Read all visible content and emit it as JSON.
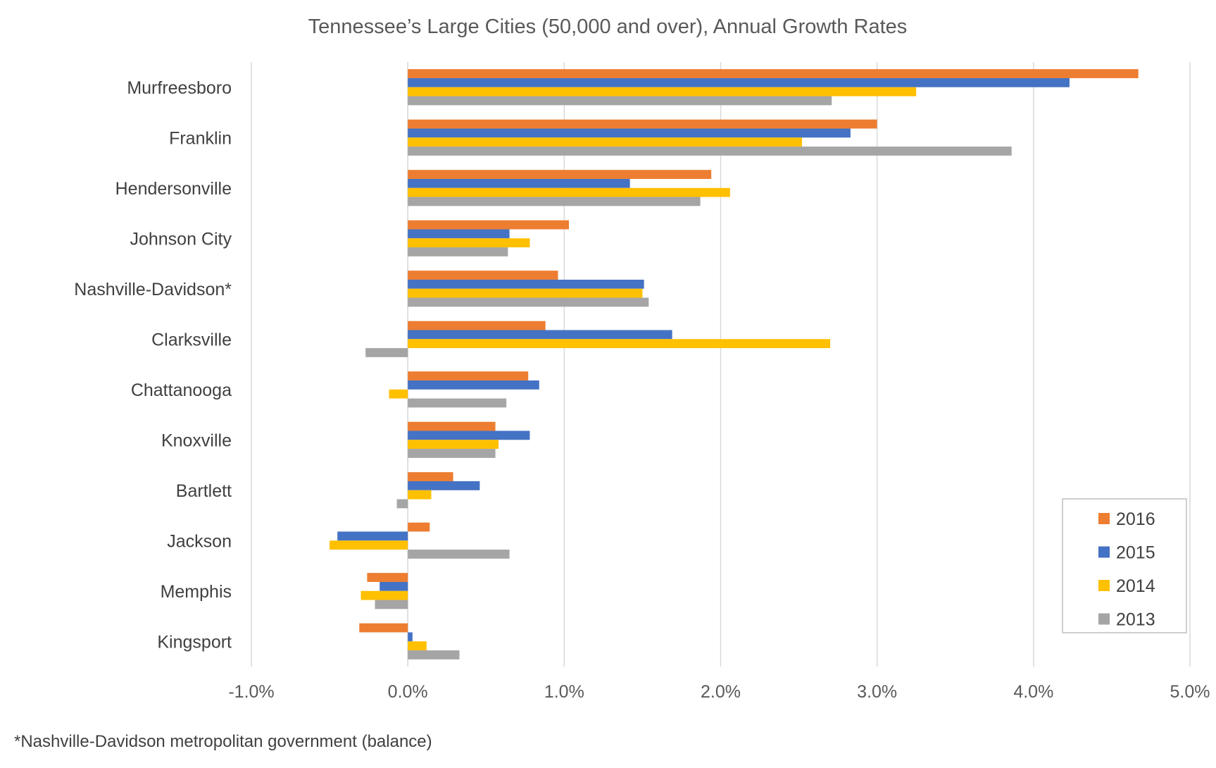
{
  "chart_data": {
    "type": "bar",
    "orientation": "horizontal",
    "title": "Tennessee’s Large Cities (50,000 and over), Annual Growth Rates",
    "xlabel": "",
    "ylabel": "",
    "categories": [
      "Murfreesboro",
      "Franklin",
      "Hendersonville",
      "Johnson City",
      "Nashville-Davidson*",
      "Clarksville",
      "Chattanooga",
      "Knoxville",
      "Bartlett",
      "Jackson",
      "Memphis",
      "Kingsport"
    ],
    "series": [
      {
        "name": "2016",
        "color": "#ED7D31",
        "values": [
          4.67,
          3.0,
          1.94,
          1.03,
          0.96,
          0.88,
          0.77,
          0.56,
          0.29,
          0.14,
          -0.26,
          -0.31
        ]
      },
      {
        "name": "2015",
        "color": "#4472C4",
        "values": [
          4.23,
          2.83,
          1.42,
          0.65,
          1.51,
          1.69,
          0.84,
          0.78,
          0.46,
          -0.45,
          -0.18,
          0.03
        ]
      },
      {
        "name": "2014",
        "color": "#FFC000",
        "values": [
          3.25,
          2.52,
          2.06,
          0.78,
          1.5,
          2.7,
          -0.12,
          0.58,
          0.15,
          -0.5,
          -0.3,
          0.12
        ]
      },
      {
        "name": "2013",
        "color": "#A5A5A5",
        "values": [
          2.71,
          3.86,
          1.87,
          0.64,
          1.54,
          -0.27,
          0.63,
          0.56,
          -0.07,
          0.65,
          -0.21,
          0.33
        ]
      }
    ],
    "xlim": [
      -1.0,
      5.0
    ],
    "xticks": [
      -1.0,
      0.0,
      1.0,
      2.0,
      3.0,
      4.0,
      5.0
    ],
    "xtick_labels": [
      "-1.0%",
      "0.0%",
      "1.0%",
      "2.0%",
      "3.0%",
      "4.0%",
      "5.0%"
    ],
    "grid": "vertical",
    "legend": {
      "position": "bottom-right",
      "entries": [
        "2016",
        "2015",
        "2014",
        "2013"
      ]
    },
    "footnote": "*Nashville-Davidson metropolitan government (balance)"
  }
}
